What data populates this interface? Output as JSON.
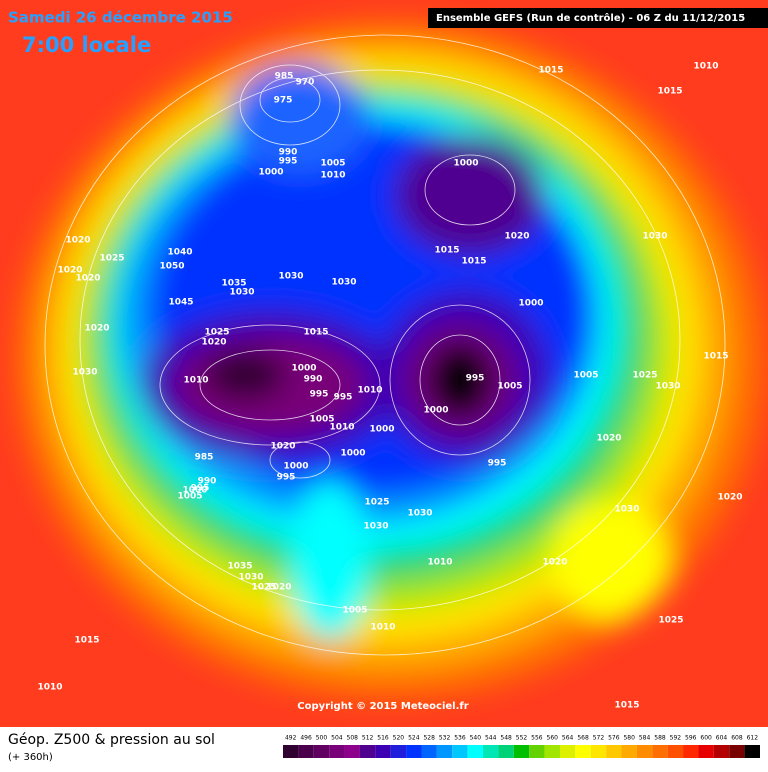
{
  "header": {
    "date": "Samedi 26 décembre 2015",
    "time": "7:00 locale",
    "run": "Ensemble GEFS  (Run de contrôle)  -  06 Z du 11/12/2015"
  },
  "isobars": [
    "985",
    "970",
    "975",
    "990",
    "995",
    "1000",
    "1005",
    "1010",
    "1000",
    "1020",
    "1030",
    "1015",
    "1010",
    "1015",
    "1020",
    "1025",
    "1020",
    "1020",
    "1040",
    "1050",
    "1035",
    "1030",
    "1030",
    "1030",
    "1045",
    "1015",
    "1015",
    "1000",
    "1020",
    "1025",
    "1020",
    "1015",
    "1030",
    "1010",
    "1000",
    "990",
    "995",
    "995",
    "1010",
    "995",
    "1005",
    "1005",
    "1025",
    "1030",
    "1015",
    "1000",
    "1005",
    "1010",
    "1000",
    "1020",
    "1020",
    "1000",
    "995",
    "1000",
    "985",
    "995",
    "990",
    "995",
    "1000",
    "1005",
    "1025",
    "1030",
    "1030",
    "1030",
    "1020",
    "1010",
    "1020",
    "1035",
    "1030",
    "1025",
    "1020",
    "1005",
    "1010",
    "1025",
    "1015",
    "1010",
    "1015"
  ],
  "copyright": "Copyright © 2015 Meteociel.fr",
  "legend": {
    "title": "Géop. Z500 & pression au sol",
    "lead": "(+ 360h)",
    "levels": [
      492,
      496,
      500,
      504,
      508,
      512,
      516,
      520,
      524,
      528,
      532,
      536,
      540,
      544,
      548,
      552,
      556,
      560,
      564,
      568,
      572,
      576,
      580,
      584,
      588,
      592,
      596,
      600,
      604,
      608,
      612
    ],
    "colors": [
      "#300030",
      "#4b004b",
      "#600060",
      "#780078",
      "#8c008c",
      "#500090",
      "#3c00b4",
      "#1e1edc",
      "#0032ff",
      "#0064ff",
      "#0096ff",
      "#00c8ff",
      "#00ffff",
      "#00e6b4",
      "#00d278",
      "#00be00",
      "#64d200",
      "#a0e600",
      "#dcf000",
      "#ffff00",
      "#ffe600",
      "#ffc800",
      "#ffaa00",
      "#ff8c00",
      "#ff6e00",
      "#ff5000",
      "#ff2800",
      "#e60000",
      "#b40000",
      "#780000",
      "#000000"
    ]
  }
}
